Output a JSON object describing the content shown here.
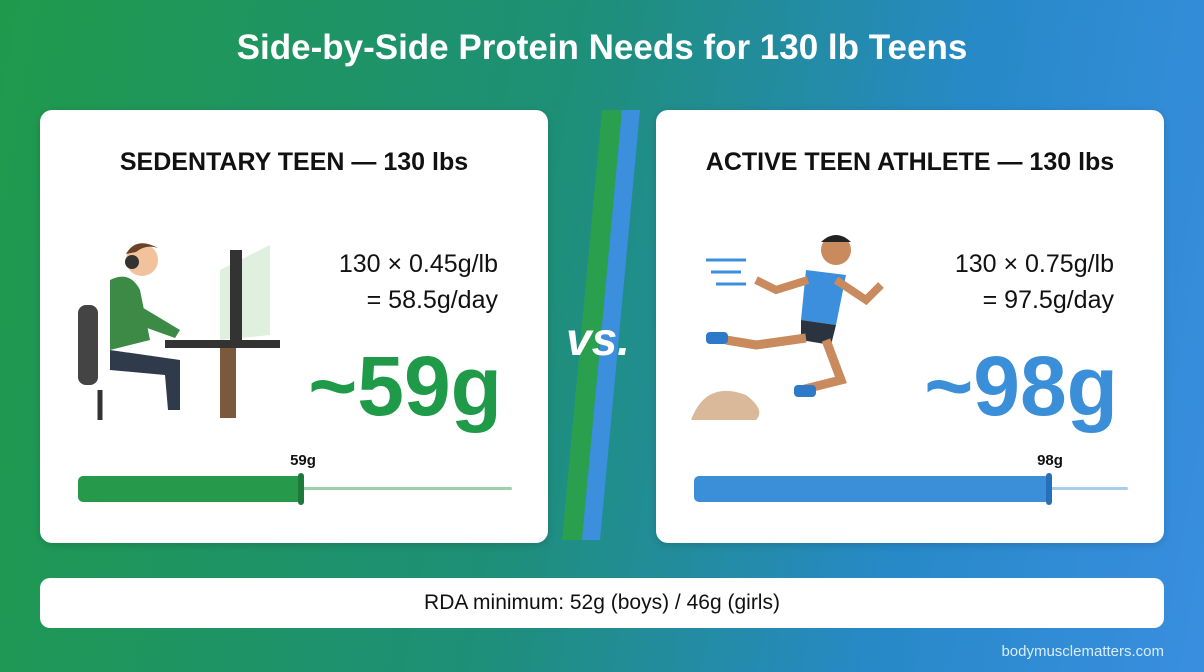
{
  "title": "Side-by-Side Protein Needs for 130 lb Teens",
  "panels": [
    {
      "heading": "SEDENTARY TEEN — 130 lbs",
      "formula": [
        "130 × 0.45g/lb",
        "= 58.5g/day"
      ],
      "result": "~59g",
      "bar_label": "59g"
    },
    {
      "heading": "ACTIVE TEEN ATHLETE — 130 lbs",
      "formula": [
        "130 × 0.75g/lb",
        "= 97.5g/day"
      ],
      "result": "~98g",
      "bar_label": "98g"
    }
  ],
  "vs": "vs.",
  "footer": "RDA minimum: 52g (boys) / 46g (girls)",
  "credit": "bodymusclematters.com"
}
